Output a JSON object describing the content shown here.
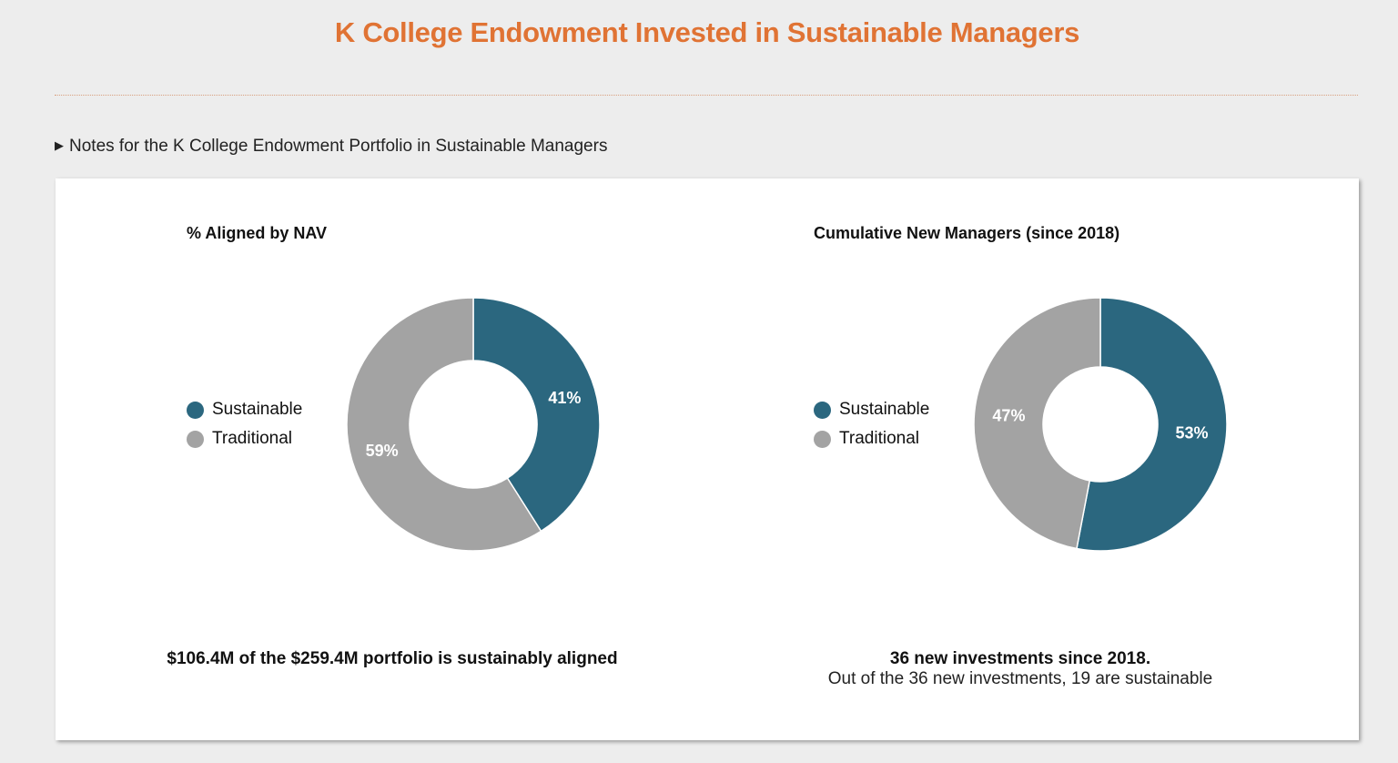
{
  "header": {
    "title": "K College Endowment Invested in Sustainable Managers"
  },
  "notes": {
    "label": "Notes for the K College Endowment Portfolio in Sustainable Managers"
  },
  "colors": {
    "sustainable": "#2b677f",
    "traditional": "#a3a3a3",
    "title": "#e07334"
  },
  "chart_data": [
    {
      "type": "pie",
      "subtype": "donut",
      "title": "% Aligned by NAV",
      "categories": [
        "Sustainable",
        "Traditional"
      ],
      "values": [
        41,
        59
      ],
      "labels": [
        "41%",
        "59%"
      ],
      "legend": "left",
      "footer": {
        "bold": "$106.4M of the $259.4M portfolio is sustainably aligned",
        "text": ""
      }
    },
    {
      "type": "pie",
      "subtype": "donut",
      "title": "Cumulative New Managers (since 2018)",
      "categories": [
        "Sustainable",
        "Traditional"
      ],
      "values": [
        53,
        47
      ],
      "labels": [
        "53%",
        "47%"
      ],
      "legend": "left",
      "footer": {
        "bold": "36 new investments since 2018.",
        "text": "Out of the 36 new investments, 19 are sustainable"
      }
    }
  ]
}
